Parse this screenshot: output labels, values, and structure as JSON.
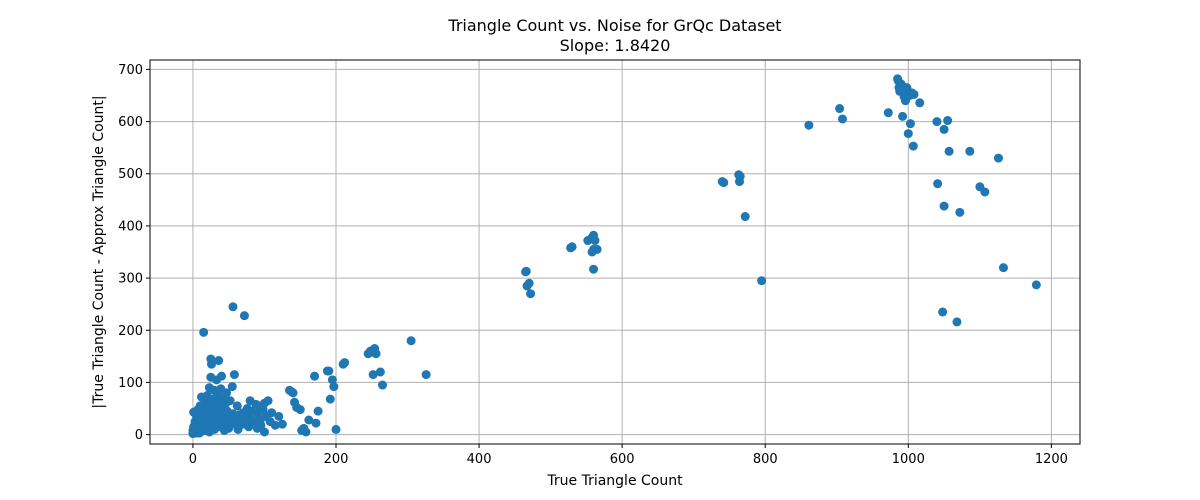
{
  "chart_data": {
    "type": "scatter",
    "title": "Triangle Count vs. Noise for GrQc Dataset",
    "subtitle": "Slope: 1.8420",
    "xlabel": "True Triangle Count",
    "ylabel": "|True Triangle Count - Approx Triangle Count|",
    "xlim": [
      -60,
      1240
    ],
    "ylim": [
      -18,
      718
    ],
    "xticks": [
      0,
      200,
      400,
      600,
      800,
      1000,
      1200
    ],
    "yticks": [
      0,
      100,
      200,
      300,
      400,
      500,
      600,
      700
    ],
    "grid": true,
    "marker_color": "#1f77b4",
    "points": [
      [
        0,
        2
      ],
      [
        0,
        8
      ],
      [
        1,
        15
      ],
      [
        1,
        43
      ],
      [
        2,
        5
      ],
      [
        3,
        25
      ],
      [
        4,
        12
      ],
      [
        5,
        35
      ],
      [
        5,
        3
      ],
      [
        6,
        20
      ],
      [
        7,
        48
      ],
      [
        8,
        10
      ],
      [
        8,
        30
      ],
      [
        9,
        3
      ],
      [
        10,
        55
      ],
      [
        10,
        18
      ],
      [
        11,
        40
      ],
      [
        12,
        72
      ],
      [
        12,
        6
      ],
      [
        13,
        28
      ],
      [
        14,
        50
      ],
      [
        15,
        15
      ],
      [
        15,
        196
      ],
      [
        16,
        35
      ],
      [
        17,
        62
      ],
      [
        18,
        8
      ],
      [
        18,
        45
      ],
      [
        19,
        22
      ],
      [
        20,
        75
      ],
      [
        20,
        12
      ],
      [
        21,
        38
      ],
      [
        22,
        58
      ],
      [
        23,
        90
      ],
      [
        23,
        5
      ],
      [
        24,
        28
      ],
      [
        25,
        110
      ],
      [
        25,
        145
      ],
      [
        26,
        48
      ],
      [
        26,
        135
      ],
      [
        27,
        18
      ],
      [
        28,
        68
      ],
      [
        29,
        33
      ],
      [
        30,
        85
      ],
      [
        30,
        10
      ],
      [
        31,
        52
      ],
      [
        32,
        25
      ],
      [
        33,
        105
      ],
      [
        34,
        42
      ],
      [
        35,
        75
      ],
      [
        36,
        15
      ],
      [
        36,
        142
      ],
      [
        37,
        60
      ],
      [
        38,
        30
      ],
      [
        39,
        88
      ],
      [
        40,
        20
      ],
      [
        40,
        112
      ],
      [
        41,
        48
      ],
      [
        42,
        70
      ],
      [
        43,
        35
      ],
      [
        44,
        8
      ],
      [
        45,
        58
      ],
      [
        46,
        25
      ],
      [
        47,
        80
      ],
      [
        48,
        45
      ],
      [
        50,
        12
      ],
      [
        50,
        30
      ],
      [
        52,
        65
      ],
      [
        54,
        20
      ],
      [
        55,
        92
      ],
      [
        56,
        40
      ],
      [
        56,
        245
      ],
      [
        58,
        115
      ],
      [
        60,
        25
      ],
      [
        62,
        55
      ],
      [
        63,
        10
      ],
      [
        65,
        38
      ],
      [
        66,
        18
      ],
      [
        68,
        30
      ],
      [
        70,
        42
      ],
      [
        72,
        228
      ],
      [
        73,
        20
      ],
      [
        75,
        35
      ],
      [
        76,
        50
      ],
      [
        78,
        15
      ],
      [
        80,
        65
      ],
      [
        80,
        30
      ],
      [
        82,
        45
      ],
      [
        85,
        25
      ],
      [
        88,
        58
      ],
      [
        90,
        12
      ],
      [
        90,
        40
      ],
      [
        92,
        55
      ],
      [
        95,
        30
      ],
      [
        95,
        18
      ],
      [
        98,
        48
      ],
      [
        100,
        60
      ],
      [
        100,
        5
      ],
      [
        102,
        35
      ],
      [
        105,
        65
      ],
      [
        108,
        25
      ],
      [
        110,
        42
      ],
      [
        115,
        18
      ],
      [
        120,
        35
      ],
      [
        125,
        20
      ],
      [
        135,
        85
      ],
      [
        138,
        82
      ],
      [
        140,
        80
      ],
      [
        142,
        62
      ],
      [
        145,
        52
      ],
      [
        150,
        48
      ],
      [
        152,
        8
      ],
      [
        155,
        12
      ],
      [
        158,
        5
      ],
      [
        162,
        28
      ],
      [
        170,
        112
      ],
      [
        172,
        22
      ],
      [
        175,
        45
      ],
      [
        188,
        122
      ],
      [
        190,
        122
      ],
      [
        192,
        68
      ],
      [
        195,
        105
      ],
      [
        197,
        92
      ],
      [
        200,
        10
      ],
      [
        210,
        135
      ],
      [
        212,
        138
      ],
      [
        245,
        155
      ],
      [
        248,
        160
      ],
      [
        250,
        158
      ],
      [
        252,
        115
      ],
      [
        254,
        165
      ],
      [
        256,
        155
      ],
      [
        262,
        120
      ],
      [
        265,
        95
      ],
      [
        305,
        180
      ],
      [
        326,
        115
      ],
      [
        465,
        312
      ],
      [
        466,
        313
      ],
      [
        467,
        285
      ],
      [
        470,
        290
      ],
      [
        472,
        270
      ],
      [
        528,
        358
      ],
      [
        530,
        360
      ],
      [
        552,
        372
      ],
      [
        558,
        378
      ],
      [
        560,
        382
      ],
      [
        562,
        372
      ],
      [
        558,
        350
      ],
      [
        560,
        355
      ],
      [
        565,
        355
      ],
      [
        560,
        317
      ],
      [
        740,
        485
      ],
      [
        742,
        483
      ],
      [
        763,
        498
      ],
      [
        765,
        495
      ],
      [
        764,
        485
      ],
      [
        772,
        418
      ],
      [
        795,
        295
      ],
      [
        861,
        593
      ],
      [
        904,
        625
      ],
      [
        908,
        605
      ],
      [
        972,
        617
      ],
      [
        985,
        682
      ],
      [
        986,
        678
      ],
      [
        987,
        665
      ],
      [
        988,
        658
      ],
      [
        990,
        672
      ],
      [
        992,
        660
      ],
      [
        994,
        648
      ],
      [
        996,
        640
      ],
      [
        998,
        665
      ],
      [
        1000,
        655
      ],
      [
        1002,
        650
      ],
      [
        1005,
        655
      ],
      [
        1008,
        652
      ],
      [
        1016,
        636
      ],
      [
        992,
        610
      ],
      [
        1000,
        577
      ],
      [
        1003,
        596
      ],
      [
        1007,
        553
      ],
      [
        1040,
        600
      ],
      [
        1041,
        481
      ],
      [
        1050,
        585
      ],
      [
        1050,
        438
      ],
      [
        1055,
        602
      ],
      [
        1057,
        543
      ],
      [
        1072,
        426
      ],
      [
        1086,
        543
      ],
      [
        1100,
        475
      ],
      [
        1107,
        465
      ],
      [
        1126,
        530
      ],
      [
        1133,
        320
      ],
      [
        1179,
        287
      ],
      [
        1048,
        235
      ],
      [
        1068,
        216
      ]
    ]
  }
}
